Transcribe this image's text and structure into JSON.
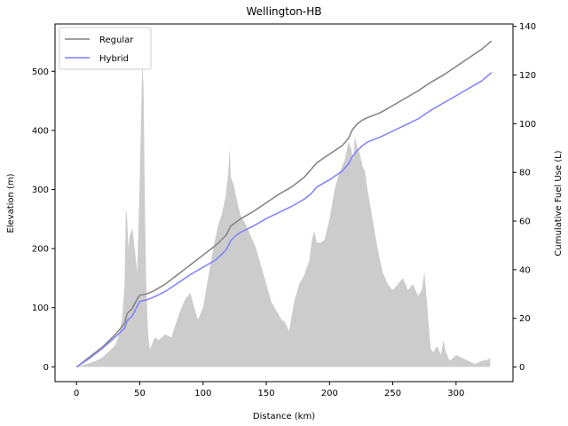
{
  "chart_data": {
    "type": "line",
    "title": "Wellington-HB",
    "xlabel": "Distance (km)",
    "ylabel": "Elevation (m)",
    "y2label": "Cumulative Fuel Use (L)",
    "xlim": [
      -17,
      345
    ],
    "ylim": [
      -25,
      580
    ],
    "y2lim": [
      -6,
      141
    ],
    "xticks": [
      0,
      50,
      100,
      150,
      200,
      250,
      300
    ],
    "yticks": [
      0,
      100,
      200,
      300,
      400,
      500
    ],
    "y2ticks": [
      0,
      20,
      40,
      60,
      80,
      100,
      120,
      140
    ],
    "grid": false,
    "legend_position": "top-left",
    "elevation": {
      "color": "#cccccc",
      "x": [
        0,
        5,
        10,
        15,
        20,
        25,
        30,
        33,
        36,
        38,
        39,
        40,
        41,
        42,
        44,
        46,
        48,
        50,
        51,
        52,
        53,
        54,
        55,
        56,
        57,
        58,
        60,
        62,
        65,
        70,
        75,
        78,
        82,
        86,
        90,
        93,
        96,
        100,
        104,
        108,
        112,
        115,
        118,
        120,
        121,
        122,
        124,
        126,
        128,
        130,
        134,
        138,
        142,
        146,
        150,
        154,
        158,
        162,
        165,
        168,
        172,
        176,
        180,
        184,
        186,
        188,
        190,
        193,
        196,
        200,
        204,
        208,
        212,
        215,
        217,
        219,
        220,
        222,
        224,
        226,
        228,
        230,
        234,
        238,
        242,
        246,
        250,
        254,
        258,
        262,
        266,
        270,
        273,
        275,
        277,
        278,
        280,
        282,
        285,
        288,
        290,
        292,
        295,
        300,
        305,
        310,
        315,
        320,
        325,
        327
      ],
      "values": [
        0,
        3,
        6,
        10,
        15,
        25,
        35,
        50,
        80,
        140,
        270,
        250,
        200,
        220,
        235,
        200,
        160,
        320,
        420,
        520,
        470,
        280,
        150,
        80,
        45,
        30,
        40,
        50,
        45,
        55,
        50,
        70,
        95,
        115,
        125,
        100,
        80,
        100,
        150,
        200,
        240,
        260,
        290,
        330,
        370,
        320,
        310,
        290,
        270,
        255,
        240,
        220,
        200,
        170,
        140,
        110,
        95,
        80,
        75,
        60,
        110,
        140,
        155,
        180,
        215,
        230,
        210,
        210,
        215,
        250,
        300,
        330,
        350,
        380,
        370,
        350,
        390,
        370,
        360,
        340,
        330,
        300,
        250,
        200,
        160,
        140,
        130,
        140,
        150,
        130,
        140,
        120,
        130,
        160,
        110,
        80,
        30,
        25,
        35,
        20,
        45,
        25,
        10,
        20,
        15,
        10,
        5,
        10,
        12,
        15
      ]
    },
    "series": [
      {
        "name": "Regular",
        "color": "#808080",
        "x": [
          0,
          10,
          20,
          30,
          35,
          38,
          40,
          44,
          46,
          48,
          50,
          55,
          60,
          70,
          80,
          90,
          100,
          110,
          118,
          122,
          126,
          130,
          140,
          150,
          160,
          170,
          180,
          185,
          190,
          200,
          210,
          215,
          218,
          222,
          226,
          230,
          240,
          250,
          260,
          270,
          280,
          290,
          300,
          310,
          320,
          328
        ],
        "values": [
          0,
          4,
          8,
          13,
          16,
          18,
          22,
          24,
          26,
          28,
          29.5,
          30,
          31,
          34,
          38,
          42,
          46,
          50,
          54,
          58,
          59.5,
          61,
          64,
          67.5,
          71,
          74,
          78,
          81,
          84,
          87.5,
          91,
          94,
          97.5,
          100,
          101.5,
          102.5,
          104.5,
          107.5,
          110.5,
          113.5,
          117,
          120,
          123.5,
          127,
          130.5,
          134
        ]
      },
      {
        "name": "Hybrid",
        "color": "#7f7fff",
        "x": [
          0,
          10,
          20,
          30,
          35,
          38,
          40,
          44,
          46,
          48,
          50,
          55,
          60,
          70,
          80,
          90,
          100,
          110,
          118,
          122,
          126,
          130,
          140,
          150,
          160,
          170,
          180,
          185,
          190,
          200,
          210,
          215,
          218,
          222,
          226,
          230,
          240,
          250,
          260,
          270,
          280,
          290,
          300,
          310,
          320,
          328
        ],
        "values": [
          0,
          3.5,
          7.5,
          12,
          14.5,
          16,
          19,
          21,
          23,
          25,
          27,
          27.5,
          28.5,
          31,
          34.5,
          38,
          41,
          44,
          48,
          52,
          54,
          55.5,
          58,
          61,
          63.5,
          66,
          69,
          71,
          74,
          77,
          80.5,
          83.5,
          86.5,
          89,
          91,
          92.5,
          94.5,
          97,
          99.5,
          102,
          105.5,
          108.5,
          111.5,
          114.5,
          117.5,
          121
        ]
      }
    ]
  }
}
